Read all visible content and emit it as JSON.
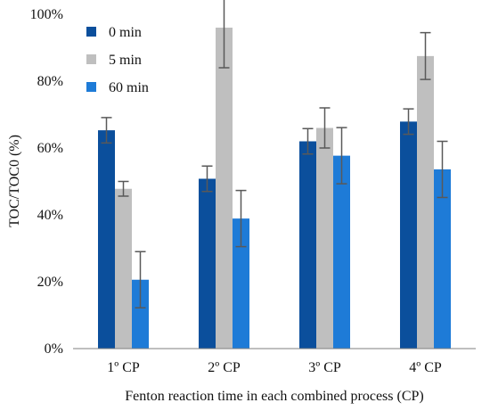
{
  "chart_data": {
    "type": "bar",
    "title": "",
    "xlabel": "Fenton reaction time in each combined process (CP)",
    "ylabel": "TOC/TOC0 (%)",
    "categories": [
      "1º CP",
      "2º CP",
      "3º CP",
      "4º CP"
    ],
    "ylim": [
      0,
      100
    ],
    "yticks": [
      "0%",
      "20%",
      "40%",
      "60%",
      "80%",
      "100%"
    ],
    "y_tick_values": [
      0,
      20,
      40,
      60,
      80,
      100
    ],
    "y_unit_suffix": "%",
    "grid": false,
    "legend_position": "top-left",
    "series": [
      {
        "name": "0 min",
        "color": "#0b4f9c",
        "values": [
          65.3,
          50.8,
          62.0,
          67.9
        ],
        "errors": [
          3.8,
          3.8,
          3.8,
          3.8
        ]
      },
      {
        "name": "5 min",
        "color": "#bfbfbf",
        "values": [
          47.8,
          96.0,
          66.0,
          87.5
        ],
        "errors": [
          2.2,
          12.0,
          6.0,
          7.0
        ]
      },
      {
        "name": "60 min",
        "color": "#1e7bd7",
        "values": [
          20.6,
          38.9,
          57.7,
          53.6
        ],
        "errors": [
          8.4,
          8.4,
          8.4,
          8.4
        ]
      }
    ]
  }
}
